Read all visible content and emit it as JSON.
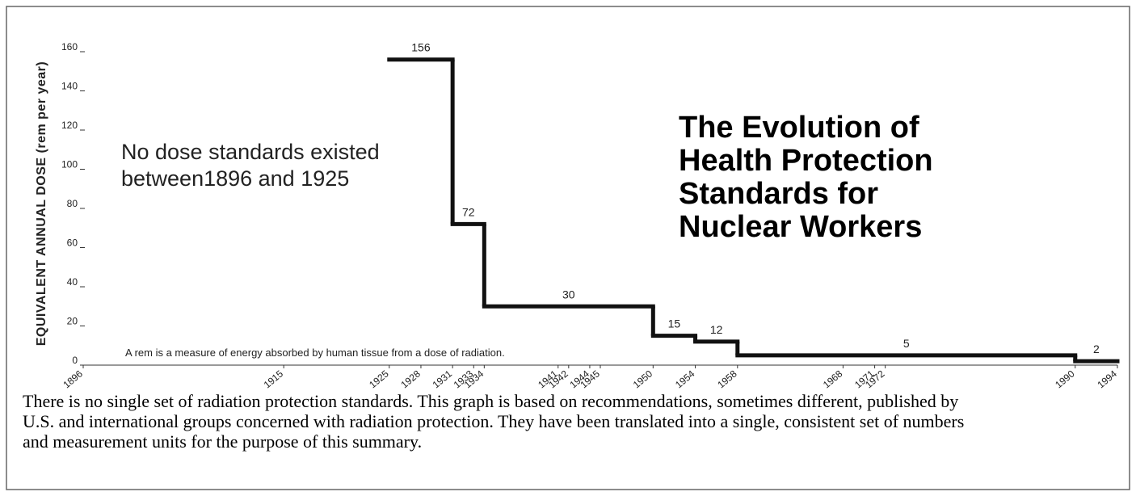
{
  "chart_data": {
    "type": "step",
    "title": "The Evolution of Health Protection Standards for Nuclear Workers",
    "y_label": "EQUIVALENT ANNUAL DOSE (rem per year)",
    "annotation": "No dose standards existed between1896 and 1925",
    "note": "A rem  is a measure of energy absorbed by human tissue from a dose of radiation.",
    "caption": "There is no single set of radiation protection standards.  This graph is based on recommendations, sometimes different, published by U.S. and international groups concerned with radiation protection.  They have been translated into a single, consistent set of numbers and measurement units for the purpose of this summary.",
    "color": "#111111",
    "steps": [
      {
        "start": 1925,
        "end": 1931,
        "value": 156
      },
      {
        "start": 1931,
        "end": 1934,
        "value": 72
      },
      {
        "start": 1934,
        "end": 1950,
        "value": 30
      },
      {
        "start": 1950,
        "end": 1954,
        "value": 15
      },
      {
        "start": 1954,
        "end": 1958,
        "value": 12
      },
      {
        "start": 1958,
        "end": 1990,
        "value": 5
      },
      {
        "start": 1990,
        "end": 1994,
        "value": 2
      }
    ],
    "xlim": [
      1896,
      1994
    ],
    "xticks": [
      1896,
      1915,
      1925,
      1928,
      1931,
      1933,
      1934,
      1941,
      1942,
      1944,
      1945,
      1950,
      1954,
      1958,
      1968,
      1971,
      1972,
      1990,
      1994
    ],
    "ylim": [
      0,
      160
    ],
    "yticks": [
      0,
      20,
      40,
      60,
      80,
      100,
      120,
      140,
      160
    ]
  }
}
